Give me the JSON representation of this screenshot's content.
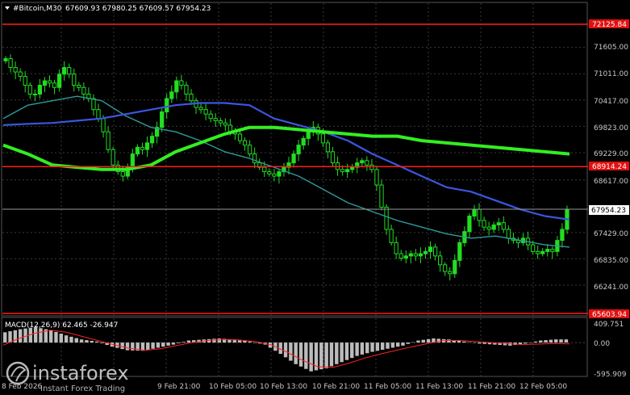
{
  "header": {
    "symbol": "#Bitcoin,M30",
    "ohlc": "67609.93 67980.25 67609.57 67954.23"
  },
  "price_axis": {
    "ticks": [
      "71605.00",
      "71011.00",
      "70417.00",
      "69823.00",
      "69229.00",
      "68617.00",
      "67429.00",
      "66835.00",
      "66241.00"
    ],
    "top_level": "72125.84",
    "mid_level": "68914.24",
    "current": "67954.23",
    "bottom_level": "65603.94"
  },
  "macd": {
    "label": "MACD(12,26,9) 62.465 -26.947",
    "ticks": [
      "409.751",
      "0.00",
      "-595.909"
    ]
  },
  "time_axis": {
    "first": "8 Feb 2026",
    "labels": [
      "9 Feb 21:00",
      "10 Feb 05:00",
      "10 Feb 13:00",
      "10 Feb 21:00",
      "11 Feb 05:00",
      "11 Feb 13:00",
      "11 Feb 21:00",
      "12 Feb 05:00"
    ]
  },
  "watermark": {
    "name": "instaforex",
    "tagline": "Instant Forex Trading"
  },
  "colors": {
    "background": "#000000",
    "bull_candle": "#22dd22",
    "level_line": "#ff1a1a",
    "ma_fast": "#2f9a9a",
    "ma_mid": "#3a57e0",
    "ma_slow": "#33ee22",
    "macd_hist": "#bcbcbc",
    "macd_signal": "#ff2020"
  },
  "chart_data": {
    "type": "candlestick",
    "series": [
      {
        "close": [
          71350,
          71150,
          71050,
          70950,
          70750,
          70550,
          70550,
          70750,
          70850,
          70800,
          70700,
          71000,
          71150,
          71000,
          70750,
          70700,
          70550,
          70450,
          70200,
          70000,
          69700,
          69300,
          68950,
          68800,
          68700,
          68900,
          69200,
          69350,
          69300,
          69450,
          69600,
          69800,
          70150,
          70450,
          70600,
          70850,
          70750,
          70550,
          70400,
          70250,
          70200,
          70100,
          70000,
          69950,
          69900,
          69850,
          69700,
          69650,
          69500,
          69400,
          69200,
          69000,
          68900,
          68800,
          68750,
          68700,
          68800,
          68900,
          69000,
          69200,
          69400,
          69550,
          69700,
          69800,
          69650,
          69450,
          69250,
          69000,
          68850,
          68800,
          68850,
          68900,
          69000,
          69050,
          68950,
          68850,
          68500,
          68000,
          67500,
          67200,
          66950,
          66850,
          66900,
          66950,
          66900,
          66950,
          67000,
          67100,
          66900,
          66700,
          66550,
          66500,
          66800,
          67200,
          67450,
          67800,
          67950,
          67700,
          67550,
          67500,
          67600,
          67650,
          67500,
          67300,
          67250,
          67200,
          67300,
          67150,
          67000,
          66950,
          67000,
          67050,
          67000,
          67250,
          67500,
          67950
        ]
      },
      {
        "name": "MA fast",
        "values": [
          70000,
          70300,
          70400,
          70500,
          70400,
          70050,
          69800,
          69700,
          69500,
          69250,
          69100,
          68900,
          68700,
          68400,
          68100,
          67900,
          67700,
          67550,
          67400,
          67300,
          67350,
          67250,
          67150,
          67100
        ]
      },
      {
        "name": "MA mid",
        "values": [
          69850,
          69880,
          69900,
          69950,
          70000,
          70100,
          70200,
          70300,
          70350,
          70350,
          70300,
          70000,
          69850,
          69700,
          69500,
          69200,
          68950,
          68700,
          68450,
          68350,
          68150,
          67950,
          67800,
          67720
        ]
      },
      {
        "name": "MA slow",
        "values": [
          69400,
          69200,
          68950,
          68900,
          68850,
          68850,
          68950,
          69250,
          69450,
          69650,
          69800,
          69800,
          69750,
          69700,
          69650,
          69600,
          69600,
          69500,
          69450,
          69400,
          69350,
          69300,
          69250,
          69200
        ]
      },
      {
        "name": "MACD hist",
        "values": [
          200,
          260,
          300,
          240,
          140,
          60,
          20,
          -80,
          -150,
          -160,
          -100,
          -40,
          40,
          60,
          80,
          60,
          20,
          -40,
          -220,
          -420,
          -560,
          -500,
          -380,
          -260,
          -180,
          -120,
          -60,
          40,
          80,
          60,
          20,
          -20,
          -40,
          -60,
          -20,
          40,
          62
        ]
      },
      {
        "name": "MACD signal",
        "values": [
          -50,
          80,
          180,
          240,
          200,
          120,
          40,
          -40,
          -110,
          -150,
          -120,
          -60,
          0,
          40,
          60,
          50,
          20,
          -40,
          -180,
          -340,
          -470,
          -480,
          -400,
          -300,
          -220,
          -150,
          -80,
          -20,
          40,
          40,
          20,
          0,
          -20,
          -40,
          -30,
          -20,
          -27
        ]
      }
    ],
    "ylim": [
      65500,
      72300
    ]
  }
}
